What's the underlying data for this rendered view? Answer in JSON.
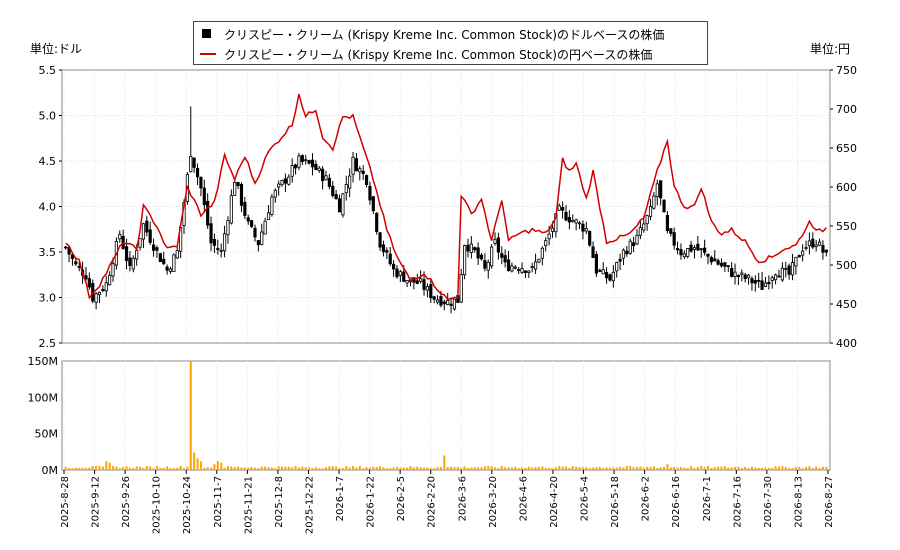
{
  "chart_data": [
    {
      "type": "candlestick+line",
      "legend": [
        {
          "name": "クリスピー・クリーム (Krispy Kreme Inc. Common Stock)のドルベースの株価",
          "color": "#000000",
          "marker": "bar"
        },
        {
          "name": "クリスピー・クリーム (Krispy Kreme Inc. Common Stock)の円ベースの株価",
          "color": "#d00000",
          "marker": "line"
        }
      ],
      "left_unit": "単位:ドル",
      "right_unit": "単位:円",
      "y_left_ticks": [
        "2.5",
        "3.0",
        "3.5",
        "4.0",
        "4.5",
        "5.0",
        "5.5"
      ],
      "y_left_range": [
        2.5,
        5.5
      ],
      "y_right_ticks": [
        "400",
        "450",
        "500",
        "550",
        "600",
        "650",
        "700",
        "750"
      ],
      "y_right_range": [
        400,
        750
      ],
      "x_ticks": [
        "2025-8-28",
        "2025-9-12",
        "2025-9-26",
        "2025-10-10",
        "2025-10-24",
        "2025-11-7",
        "2025-11-21",
        "2025-12-8",
        "2025-12-22",
        "2026-1-7",
        "2026-1-22",
        "2026-2-5",
        "2026-2-20",
        "2026-3-6",
        "2026-3-20",
        "2026-4-6",
        "2026-4-20",
        "2026-5-4",
        "2026-5-18",
        "2026-6-2",
        "2026-6-16",
        "2026-7-1",
        "2026-7-16",
        "2026-7-30",
        "2026-8-13",
        "2026-8-27"
      ],
      "usd_anchors": [
        [
          0,
          3.55
        ],
        [
          3,
          3.35
        ],
        [
          6,
          3.25
        ],
        [
          8,
          3.0
        ],
        [
          12,
          3.15
        ],
        [
          16,
          3.7
        ],
        [
          19,
          3.3
        ],
        [
          23,
          3.8
        ],
        [
          27,
          3.5
        ],
        [
          30,
          3.3
        ],
        [
          33,
          3.5
        ],
        [
          37,
          4.6
        ],
        [
          40,
          4.2
        ],
        [
          43,
          3.6
        ],
        [
          46,
          3.5
        ],
        [
          50,
          4.3
        ],
        [
          54,
          3.8
        ],
        [
          57,
          3.6
        ],
        [
          61,
          4.1
        ],
        [
          65,
          4.3
        ],
        [
          69,
          4.5
        ],
        [
          73,
          4.45
        ],
        [
          77,
          4.3
        ],
        [
          81,
          4.0
        ],
        [
          85,
          4.5
        ],
        [
          89,
          4.3
        ],
        [
          93,
          3.6
        ],
        [
          97,
          3.3
        ],
        [
          101,
          3.2
        ],
        [
          105,
          3.15
        ],
        [
          109,
          3.0
        ],
        [
          113,
          2.95
        ],
        [
          116,
          2.97
        ],
        [
          118,
          3.6
        ],
        [
          121,
          3.5
        ],
        [
          124,
          3.3
        ],
        [
          127,
          3.6
        ],
        [
          130,
          3.35
        ],
        [
          134,
          3.35
        ],
        [
          138,
          3.3
        ],
        [
          142,
          3.6
        ],
        [
          146,
          3.95
        ],
        [
          150,
          3.85
        ],
        [
          154,
          3.75
        ],
        [
          157,
          3.3
        ],
        [
          161,
          3.2
        ],
        [
          165,
          3.5
        ],
        [
          169,
          3.65
        ],
        [
          173,
          3.95
        ],
        [
          175,
          4.25
        ],
        [
          178,
          3.7
        ],
        [
          182,
          3.5
        ],
        [
          186,
          3.55
        ],
        [
          190,
          3.45
        ],
        [
          194,
          3.35
        ],
        [
          198,
          3.25
        ],
        [
          202,
          3.2
        ],
        [
          206,
          3.12
        ],
        [
          210,
          3.3
        ],
        [
          214,
          3.25
        ],
        [
          218,
          3.55
        ],
        [
          222,
          3.62
        ],
        [
          225,
          3.45
        ]
      ],
      "jpy_anchors": [
        [
          0,
          530
        ],
        [
          4,
          505
        ],
        [
          7,
          460
        ],
        [
          10,
          475
        ],
        [
          14,
          505
        ],
        [
          17,
          530
        ],
        [
          21,
          520
        ],
        [
          23,
          575
        ],
        [
          27,
          550
        ],
        [
          30,
          520
        ],
        [
          33,
          525
        ],
        [
          36,
          600
        ],
        [
          40,
          565
        ],
        [
          44,
          580
        ],
        [
          47,
          640
        ],
        [
          50,
          610
        ],
        [
          53,
          640
        ],
        [
          56,
          605
        ],
        [
          60,
          645
        ],
        [
          64,
          665
        ],
        [
          67,
          680
        ],
        [
          69,
          720
        ],
        [
          71,
          690
        ],
        [
          74,
          700
        ],
        [
          76,
          665
        ],
        [
          79,
          650
        ],
        [
          82,
          690
        ],
        [
          85,
          690
        ],
        [
          88,
          650
        ],
        [
          91,
          610
        ],
        [
          95,
          545
        ],
        [
          98,
          510
        ],
        [
          102,
          480
        ],
        [
          106,
          490
        ],
        [
          110,
          470
        ],
        [
          113,
          455
        ],
        [
          116,
          460
        ],
        [
          117,
          590
        ],
        [
          120,
          565
        ],
        [
          123,
          585
        ],
        [
          126,
          530
        ],
        [
          129,
          585
        ],
        [
          131,
          530
        ],
        [
          134,
          540
        ],
        [
          138,
          545
        ],
        [
          142,
          540
        ],
        [
          145,
          560
        ],
        [
          147,
          635
        ],
        [
          149,
          620
        ],
        [
          151,
          630
        ],
        [
          154,
          585
        ],
        [
          156,
          620
        ],
        [
          160,
          530
        ],
        [
          164,
          535
        ],
        [
          167,
          540
        ],
        [
          171,
          560
        ],
        [
          175,
          620
        ],
        [
          178,
          660
        ],
        [
          180,
          600
        ],
        [
          183,
          575
        ],
        [
          186,
          575
        ],
        [
          188,
          600
        ],
        [
          191,
          555
        ],
        [
          194,
          540
        ],
        [
          197,
          545
        ],
        [
          201,
          530
        ],
        [
          205,
          505
        ],
        [
          209,
          510
        ],
        [
          212,
          520
        ],
        [
          216,
          525
        ],
        [
          220,
          555
        ],
        [
          224,
          540
        ],
        [
          225,
          550
        ]
      ],
      "n_points": 226
    },
    {
      "type": "bar",
      "y_ticks": [
        "0M",
        "50M",
        "100M",
        "150M"
      ],
      "y_range": [
        0,
        150
      ],
      "unit": "M",
      "volume_spikes": [
        [
          12,
          12
        ],
        [
          13,
          10
        ],
        [
          37,
          150
        ],
        [
          38,
          24
        ],
        [
          39,
          16
        ],
        [
          40,
          12
        ],
        [
          44,
          8
        ],
        [
          45,
          12
        ],
        [
          46,
          10
        ],
        [
          111,
          4
        ],
        [
          112,
          20
        ],
        [
          113,
          4
        ],
        [
          174,
          5
        ],
        [
          178,
          8
        ],
        [
          192,
          4
        ]
      ],
      "base_volume": 4,
      "color": "#ffa500"
    }
  ]
}
